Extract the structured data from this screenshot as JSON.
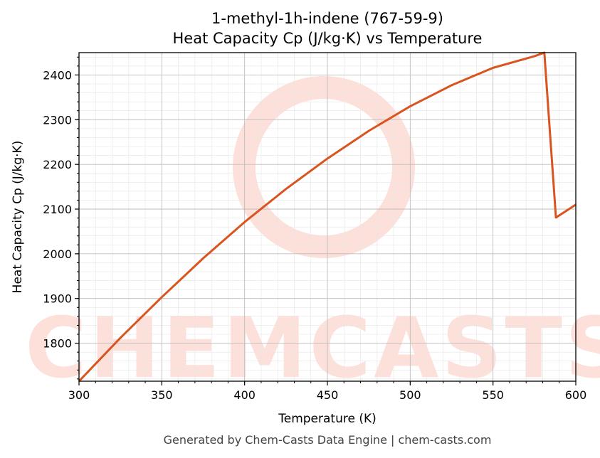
{
  "chart_data": {
    "type": "line",
    "title": "1-methyl-1h-indene (767-59-9)",
    "subtitle": "Heat Capacity Cp (J/kg·K) vs Temperature",
    "xlabel": "Temperature (K)",
    "ylabel": "Heat Capacity Cp (J/kg·K)",
    "xlim": [
      300,
      600
    ],
    "ylim": [
      1715,
      2450
    ],
    "xticks": [
      300,
      350,
      400,
      450,
      500,
      550,
      600
    ],
    "yticks": [
      1800,
      1900,
      2000,
      2100,
      2200,
      2300,
      2400
    ],
    "grid": true,
    "line_color": "#d9541e",
    "series": [
      {
        "x": [
          300,
          325,
          350,
          375,
          400,
          425,
          450,
          475,
          500,
          525,
          550,
          575,
          581,
          588,
          600
        ],
        "y": [
          1715,
          1812,
          1903,
          1990,
          2071,
          2145,
          2213,
          2275,
          2330,
          2377,
          2416,
          2442,
          2450,
          2081,
          2110
        ]
      }
    ]
  },
  "watermark": "CHEMCASTS",
  "footer": "Generated by Chem-Casts Data Engine | chem-casts.com"
}
